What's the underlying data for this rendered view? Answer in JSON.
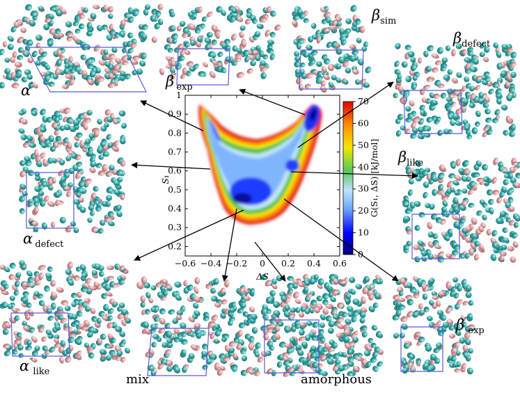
{
  "figure": {
    "central_plot": {
      "x_axis_label": "ΔS",
      "y_axis_label": "S₁",
      "x_ticks": [
        "−0.6",
        "−0.4",
        "−0.2",
        "0",
        "0.2",
        "0.4",
        "0.6"
      ],
      "y_ticks": [
        "0.2",
        "0.3",
        "0.4",
        "0.5",
        "0.6",
        "0.7",
        "0.8",
        "0.9",
        "1"
      ],
      "colorbar_label": "G(S₁, ΔS) [kJ/mol]",
      "colorbar_ticks": [
        "0",
        "10",
        "20",
        "30",
        "40",
        "50",
        "60",
        "70"
      ],
      "xlim": [
        -0.6,
        0.6
      ],
      "ylim": [
        0.15,
        1.0
      ],
      "colormap": [
        "#00007a",
        "#0000ff",
        "#6da8ff",
        "#bfe3ff",
        "#58c85a",
        "#f2e800",
        "#ff8a00",
        "#e00000"
      ]
    },
    "panels": [
      {
        "name": "alpha-prime",
        "label_main": "α",
        "label_sup": "′",
        "label_sub": ""
      },
      {
        "name": "beta-prime-exp",
        "label_main": "β",
        "label_sup": "′",
        "label_sub": "exp"
      },
      {
        "name": "beta-sim",
        "label_main": "β",
        "label_sup": "",
        "label_sub": "sim"
      },
      {
        "name": "beta-defect",
        "label_main": "β",
        "label_sup": "",
        "label_sub": "defect"
      },
      {
        "name": "alpha-prime-defect",
        "label_main": "α",
        "label_sup": "′",
        "label_sub": "defect"
      },
      {
        "name": "beta-like",
        "label_main": "β",
        "label_sup": "",
        "label_sub": "like"
      },
      {
        "name": "alpha-double-prime-like",
        "label_main": "α",
        "label_sup": "″",
        "label_sub": "like"
      },
      {
        "name": "mix",
        "label_main": "mix",
        "label_sup": "",
        "label_sub": ""
      },
      {
        "name": "amorphous",
        "label_main": "amorphous",
        "label_sup": "",
        "label_sub": ""
      },
      {
        "name": "beta-double-prime-exp",
        "label_main": "β",
        "label_sup": "″",
        "label_sub": "exp"
      }
    ],
    "colors": {
      "molecule_teal": "#2e9a9a",
      "molecule_pink": "#d08a8e",
      "cell_box": "#5a5ad8"
    }
  }
}
